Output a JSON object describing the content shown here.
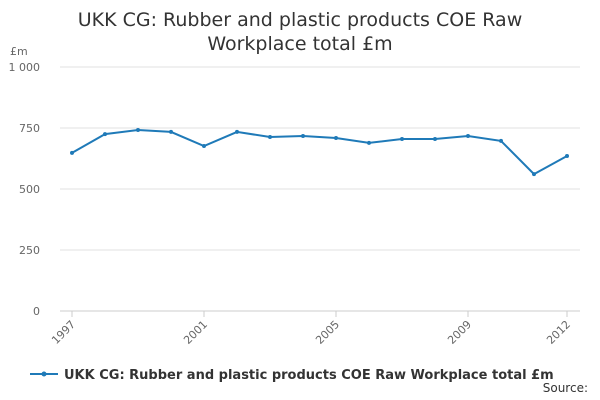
{
  "chart_data": {
    "type": "line",
    "title": "UKK CG: Rubber and plastic products COE Raw Workplace total £m",
    "y_label": "£m",
    "x": [
      1997,
      1998,
      1999,
      2000,
      2001,
      2002,
      2003,
      2004,
      2005,
      2006,
      2007,
      2008,
      2009,
      2010,
      2011,
      2012
    ],
    "series": [
      {
        "name": "UKK CG: Rubber and plastic products COE Raw Workplace total £m",
        "color": "#1f7ab8",
        "values": [
          648,
          725,
          742,
          734,
          676,
          734,
          713,
          717,
          709,
          689,
          705,
          705,
          717,
          697,
          561,
          635
        ]
      }
    ],
    "xlim": [
      1997,
      2012
    ],
    "xticks": [
      1997,
      2001,
      2005,
      2009,
      2012
    ],
    "ylim": [
      0,
      1000
    ],
    "yticks": [
      0,
      250,
      500,
      750,
      {
        "value": 1000,
        "label": "1 000"
      }
    ],
    "grid": true,
    "legend": "bottom",
    "source": "Source:"
  }
}
